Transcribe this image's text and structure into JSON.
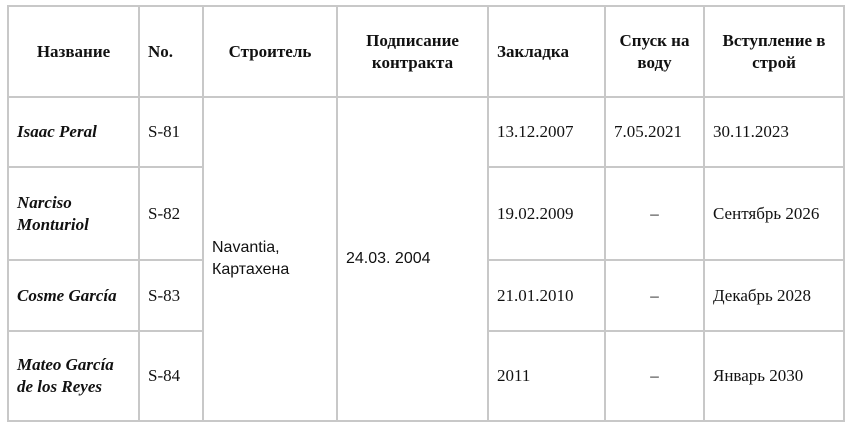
{
  "table": {
    "headers": [
      "Название",
      "No.",
      "Строитель",
      "Подписание контракта",
      "Закладка",
      "Спуск на воду",
      "Вступление в строй"
    ],
    "builder": "Navantia, Картахена",
    "contract_signed": "24.03. 2004",
    "rows": [
      {
        "name": "Isaac Peral",
        "no": "S-81",
        "laid_down": "13.12.2007",
        "launched": "7.05.2021",
        "commissioned": "30.11.2023"
      },
      {
        "name": "Narciso Monturiol",
        "no": "S-82",
        "laid_down": "19.02.2009",
        "launched": "–",
        "commissioned": "Сентябрь 2026"
      },
      {
        "name": "Cosme García",
        "no": "S-83",
        "laid_down": "21.01.2010",
        "launched": "–",
        "commissioned": "Декабрь 2028"
      },
      {
        "name": "Mateo García de los Reyes",
        "no": "S-84",
        "laid_down": "2011",
        "launched": "–",
        "commissioned": "Январь 2030"
      }
    ]
  }
}
